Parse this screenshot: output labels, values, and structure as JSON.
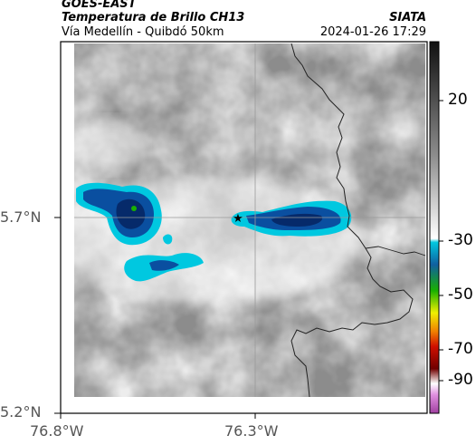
{
  "header": {
    "satellite": "GOES-EAST",
    "product": "Temperatura de Brillo CH13",
    "brand": "SIATA",
    "route": "Vía Medellín - Quibdó 50km",
    "datetime": "2024-01-26 17:29"
  },
  "map": {
    "lat_labels": [
      "5.7°N",
      "5.2°N"
    ],
    "lon_labels": [
      "76.8°W",
      "76.3°W"
    ],
    "marker_icon": "star-icon"
  },
  "colorbar": {
    "tick_labels": [
      "20",
      "-30",
      "-50",
      "-70",
      "-90"
    ],
    "colors": {
      "cold_cyan": "#00c8e0",
      "deep_blue": "#0a3a8c",
      "green": "#19b000",
      "yellow": "#f0f000",
      "orange": "#f08000",
      "red": "#d01000",
      "dark": "#200000",
      "magenta": "#b030b0"
    }
  }
}
